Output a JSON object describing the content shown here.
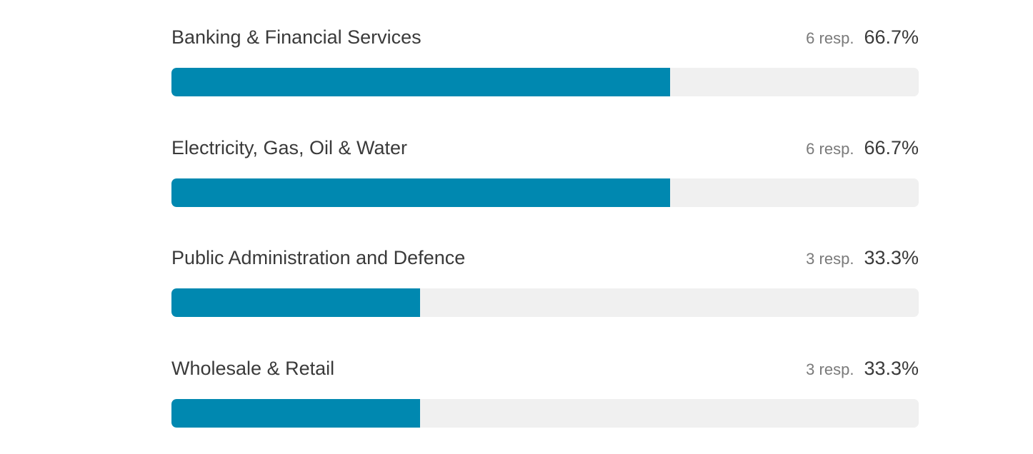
{
  "chart_data": {
    "type": "bar",
    "orientation": "horizontal",
    "categories": [
      "Banking & Financial Services",
      "Electricity, Gas, Oil & Water",
      "Public Administration and Defence",
      "Wholesale & Retail"
    ],
    "responses": [
      "6 resp.",
      "6 resp.",
      "3 resp.",
      "3 resp."
    ],
    "percent_labels": [
      "66.7%",
      "66.7%",
      "33.3%",
      "33.3%"
    ],
    "values": [
      66.7,
      66.7,
      33.3,
      33.3
    ],
    "xlim": [
      0,
      100
    ],
    "bar_color": "#0088b0",
    "track_color": "#f0f0f0"
  }
}
